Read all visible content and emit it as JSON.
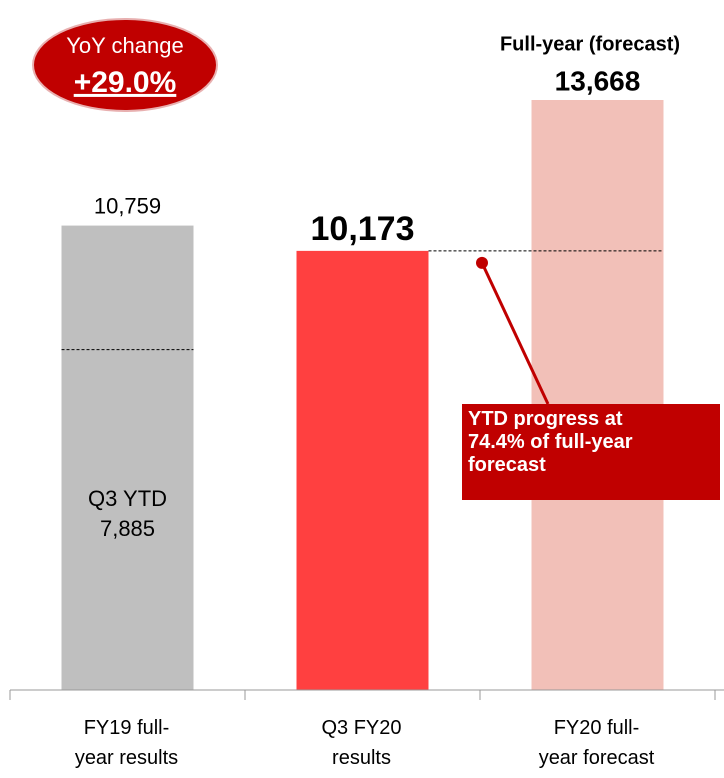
{
  "chart_data": {
    "type": "bar",
    "categories": [
      "FY19 full-\nyear results",
      "Q3 FY20\nresults",
      "FY20 full-\nyear forecast"
    ],
    "values": [
      10759,
      10173,
      13668
    ],
    "value_labels": [
      "10,759",
      "10,173",
      "13,668"
    ],
    "colors": [
      "#bfbfbf",
      "#ff4040",
      "#f2c0b8"
    ],
    "ylim": [
      0,
      14000
    ],
    "ytd_title": "Q3 YTD",
    "ytd_value": 7885,
    "ytd_label": "7,885",
    "yoy_title": "YoY change",
    "yoy_label": "+29.0%",
    "forecast_title": "Full-year (forecast)",
    "progress_note": "YTD progress at\n74.4% of full-year\nforecast"
  }
}
